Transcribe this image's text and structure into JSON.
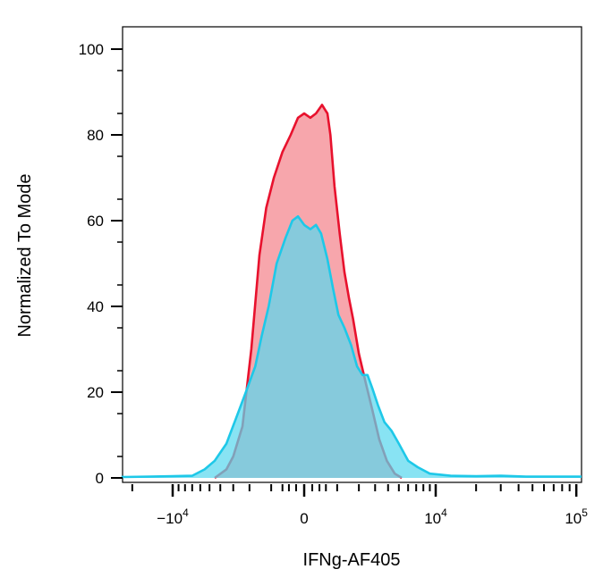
{
  "chart_data": {
    "type": "area",
    "title": "",
    "xlabel": "IFNg-AF405",
    "ylabel": "Normalized To Mode",
    "x_scale": "biexponential",
    "xlim": [
      -30000,
      110000
    ],
    "ylim": [
      0,
      105
    ],
    "x_ticks": [
      {
        "value": -10000,
        "label": "−10",
        "exp": "4"
      },
      {
        "value": 0,
        "label": "0",
        "exp": ""
      },
      {
        "value": 10000,
        "label": "10",
        "exp": "4"
      },
      {
        "value": 100000,
        "label": "10",
        "exp": "5"
      }
    ],
    "y_ticks": [
      0,
      20,
      40,
      60,
      80,
      100
    ],
    "grid": false,
    "series": [
      {
        "color_line": "#e8112d",
        "color_fill": "#f7a1a8",
        "points": [
          [
            -4500,
            0
          ],
          [
            -3500,
            2
          ],
          [
            -3000,
            5
          ],
          [
            -2400,
            12
          ],
          [
            -1900,
            30
          ],
          [
            -1500,
            52
          ],
          [
            -1200,
            63
          ],
          [
            -900,
            70
          ],
          [
            -600,
            76
          ],
          [
            -350,
            80
          ],
          [
            -150,
            84
          ],
          [
            0,
            85
          ],
          [
            150,
            84
          ],
          [
            300,
            85
          ],
          [
            480,
            87
          ],
          [
            560,
            86
          ],
          [
            650,
            85
          ],
          [
            750,
            80
          ],
          [
            900,
            68
          ],
          [
            1100,
            57
          ],
          [
            1300,
            48
          ],
          [
            1500,
            42
          ],
          [
            1700,
            37
          ],
          [
            2000,
            29
          ],
          [
            2400,
            22
          ],
          [
            2800,
            16
          ],
          [
            3300,
            9
          ],
          [
            3900,
            4
          ],
          [
            4600,
            1
          ],
          [
            5300,
            0
          ]
        ]
      },
      {
        "color_line": "#1ec8e8",
        "color_fill": "#5ad8ee",
        "points": [
          [
            -30000,
            0.5
          ],
          [
            -24000,
            0.2
          ],
          [
            -15000,
            0.3
          ],
          [
            -10000,
            0.4
          ],
          [
            -7000,
            0.5
          ],
          [
            -5500,
            2
          ],
          [
            -4500,
            4
          ],
          [
            -3500,
            8
          ],
          [
            -2800,
            14
          ],
          [
            -2200,
            20
          ],
          [
            -1700,
            26
          ],
          [
            -1400,
            33
          ],
          [
            -1100,
            40
          ],
          [
            -800,
            50
          ],
          [
            -500,
            56
          ],
          [
            -300,
            60
          ],
          [
            -150,
            61
          ],
          [
            0,
            59
          ],
          [
            150,
            58
          ],
          [
            300,
            59
          ],
          [
            450,
            57
          ],
          [
            650,
            51
          ],
          [
            850,
            44
          ],
          [
            1050,
            38
          ],
          [
            1300,
            35
          ],
          [
            1600,
            31
          ],
          [
            1900,
            26
          ],
          [
            2200,
            24
          ],
          [
            2500,
            24
          ],
          [
            2800,
            21
          ],
          [
            3200,
            17
          ],
          [
            3700,
            13
          ],
          [
            4300,
            11
          ],
          [
            5000,
            8
          ],
          [
            6000,
            4
          ],
          [
            7200,
            2.5
          ],
          [
            9000,
            1
          ],
          [
            13000,
            0.5
          ],
          [
            20000,
            0.4
          ],
          [
            30000,
            0.5
          ],
          [
            45000,
            0.3
          ],
          [
            110000,
            0.3
          ]
        ]
      }
    ]
  }
}
